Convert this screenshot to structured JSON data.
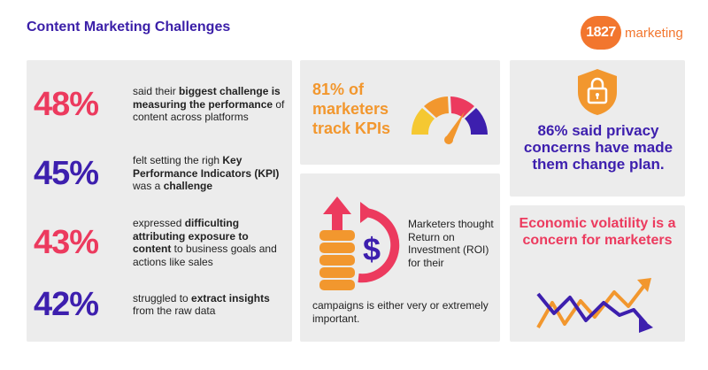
{
  "header": {
    "title": "Content Marketing Challenges",
    "logo_number": "1827",
    "logo_word": "marketing"
  },
  "stats": [
    {
      "percent": "48%",
      "color": "#ec3a5e",
      "parts": [
        {
          "text": "said their ",
          "bold": false
        },
        {
          "text": "biggest challenge is measuring the performance",
          "bold": true
        },
        {
          "text": " of content across platforms",
          "bold": false
        }
      ]
    },
    {
      "percent": "45%",
      "color": "#3d1fae",
      "parts": [
        {
          "text": "felt setting the righ ",
          "bold": false
        },
        {
          "text": "Key Performance Indicators (KPI)",
          "bold": true
        },
        {
          "text": " was a ",
          "bold": false
        },
        {
          "text": "challenge",
          "bold": true
        }
      ]
    },
    {
      "percent": "43%",
      "color": "#ec3a5e",
      "parts": [
        {
          "text": "expressed ",
          "bold": false
        },
        {
          "text": "difficulting attributing exposure to content",
          "bold": true
        },
        {
          "text": " to business goals and actions like sales",
          "bold": false
        }
      ]
    },
    {
      "percent": "42%",
      "color": "#3d1fae",
      "parts": [
        {
          "text": "struggled to ",
          "bold": false
        },
        {
          "text": "extract insights",
          "bold": true
        },
        {
          "text": " from the raw data",
          "bold": false
        }
      ]
    }
  ],
  "kpi": {
    "text": "81% of marketers track KPIs",
    "icon": "gauge-icon"
  },
  "roi": {
    "text_top": "Marketers thought Return on Investment (ROI) for their",
    "text_bottom": "campaigns is either very or extremely important.",
    "icon": "coins-dollar-icon"
  },
  "privacy": {
    "text": "86% said privacy concerns have made them change plan.",
    "icon": "lock-shield-icon"
  },
  "economy": {
    "text": "Economic volatility is a concern for marketers",
    "icon": "volatile-arrows-icon"
  },
  "colors": {
    "red": "#ec3a5e",
    "purple": "#3d1fae",
    "orange": "#f2972e",
    "yellow": "#f5c832",
    "card_bg": "#ececec"
  }
}
